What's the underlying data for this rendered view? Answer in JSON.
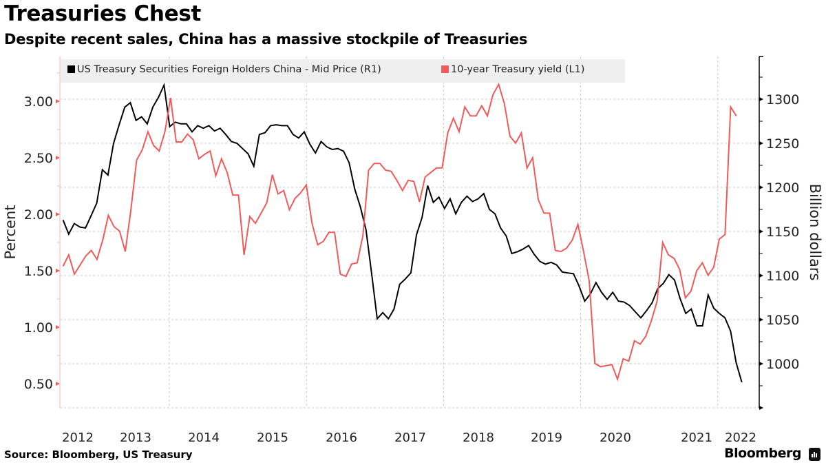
{
  "header": {
    "title": "Treasuries Chest",
    "subtitle": "Despite recent sales, China has a massive stockpile of Treasuries"
  },
  "footer": {
    "source": "Source: Bloomberg, US Treasury",
    "brand": "Bloomberg",
    "brand_icon": "bloomberg-chart-icon"
  },
  "chart_data": {
    "type": "line",
    "title": "Treasuries Chest",
    "subtitle": "Despite recent sales, China has a massive stockpile of Treasuries",
    "xlabel": "",
    "x_ticks": [
      "2012",
      "2013",
      "2014",
      "2015",
      "2016",
      "2017",
      "2018",
      "2019",
      "2020",
      "2021",
      "2022"
    ],
    "x_range": [
      2012.45,
      2022.35
    ],
    "grid": true,
    "legend_placement": "top",
    "left_axis": {
      "label": "Percent",
      "ticks": [
        "0.50",
        "1.00",
        "1.50",
        "2.00",
        "2.50",
        "3.00"
      ],
      "range": [
        0.3,
        3.4
      ]
    },
    "right_axis": {
      "label": "Billion dollars",
      "ticks": [
        "1000",
        "1050",
        "1100",
        "1150",
        "1200",
        "1250",
        "1300"
      ],
      "range": [
        950,
        1350
      ]
    },
    "series": [
      {
        "name": "US Treasury Securities Foreign Holders China - Mid Price (R1)",
        "axis": "right",
        "color": "#000000",
        "x_start": 2012.45,
        "x_end": 2022.35,
        "values": [
          1163,
          1147,
          1159,
          1155,
          1154,
          1168,
          1182,
          1220,
          1214,
          1250,
          1271,
          1291,
          1296,
          1276,
          1280,
          1272,
          1291,
          1302,
          1316,
          1269,
          1274,
          1272,
          1272,
          1263,
          1270,
          1267,
          1270,
          1264,
          1267,
          1260,
          1252,
          1250,
          1244,
          1238,
          1224,
          1260,
          1262,
          1270,
          1271,
          1270,
          1270,
          1260,
          1256,
          1263,
          1249,
          1239,
          1252,
          1246,
          1243,
          1244,
          1241,
          1228,
          1198,
          1178,
          1152,
          1103,
          1051,
          1058,
          1051,
          1062,
          1090,
          1096,
          1103,
          1146,
          1166,
          1202,
          1183,
          1189,
          1176,
          1187,
          1170,
          1183,
          1190,
          1184,
          1187,
          1193,
          1175,
          1170,
          1154,
          1145,
          1125,
          1127,
          1130,
          1134,
          1124,
          1116,
          1113,
          1115,
          1112,
          1104,
          1103,
          1102,
          1088,
          1071,
          1079,
          1092,
          1081,
          1073,
          1081,
          1071,
          1070,
          1066,
          1059,
          1052,
          1060,
          1069,
          1085,
          1091,
          1101,
          1095,
          1074,
          1057,
          1062,
          1043,
          1043,
          1078,
          1063,
          1057,
          1052,
          1037,
          1001,
          979
        ]
      },
      {
        "name": "10-year Treasury yield (L1)",
        "axis": "left",
        "color": "#f05a5a",
        "x_start": 2012.45,
        "x_end": 2022.27,
        "values": [
          1.54,
          1.64,
          1.47,
          1.55,
          1.63,
          1.68,
          1.6,
          1.77,
          1.99,
          1.89,
          1.85,
          1.67,
          2.04,
          2.48,
          2.57,
          2.73,
          2.61,
          2.56,
          2.73,
          3.03,
          2.64,
          2.64,
          2.71,
          2.66,
          2.49,
          2.53,
          2.56,
          2.34,
          2.49,
          2.37,
          2.17,
          2.17,
          1.64,
          1.98,
          1.92,
          2.01,
          2.1,
          2.35,
          2.18,
          2.21,
          2.04,
          2.14,
          2.19,
          2.26,
          1.92,
          1.73,
          1.76,
          1.84,
          1.84,
          1.47,
          1.45,
          1.56,
          1.57,
          1.81,
          2.39,
          2.45,
          2.45,
          2.39,
          2.38,
          2.3,
          2.21,
          2.3,
          2.29,
          2.11,
          2.33,
          2.37,
          2.41,
          2.41,
          2.72,
          2.85,
          2.73,
          2.95,
          2.87,
          2.87,
          2.96,
          2.87,
          3.06,
          3.15,
          2.98,
          2.69,
          2.63,
          2.72,
          2.41,
          2.5,
          2.13,
          2.01,
          2.01,
          1.68,
          1.67,
          1.7,
          1.77,
          1.91,
          1.67,
          1.41,
          0.68,
          0.65,
          0.66,
          0.67,
          0.54,
          0.72,
          0.7,
          0.88,
          0.85,
          0.92,
          1.06,
          1.23,
          1.75,
          1.64,
          1.61,
          1.51,
          1.26,
          1.32,
          1.5,
          1.57,
          1.46,
          1.53,
          1.78,
          1.82,
          2.95,
          2.87
        ]
      }
    ]
  }
}
